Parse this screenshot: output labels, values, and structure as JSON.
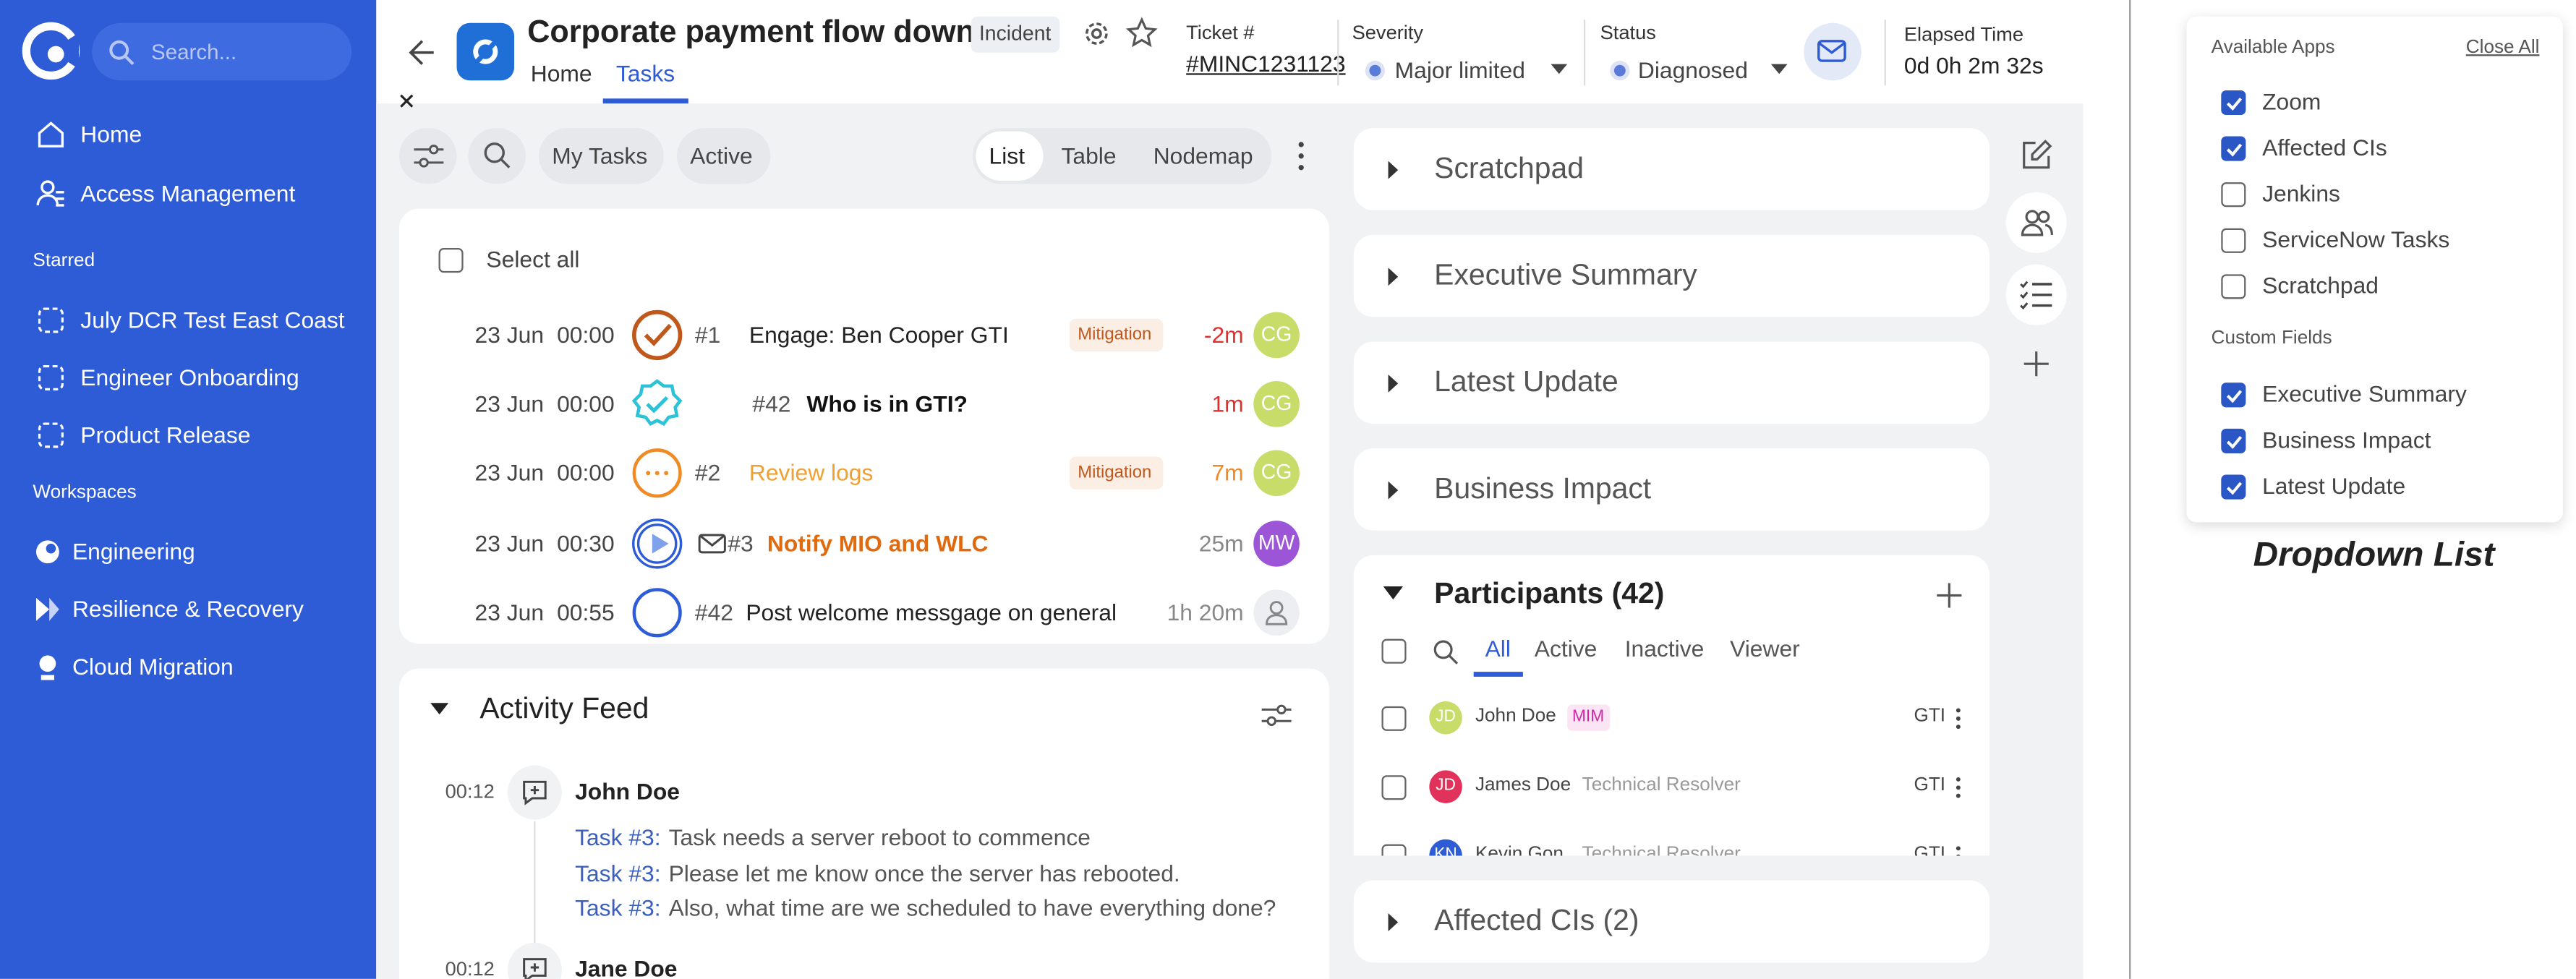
{
  "sidebar": {
    "search_placeholder": "Search...",
    "nav": [
      "Home",
      "Access Management"
    ],
    "starred_heading": "Starred",
    "starred": [
      "July DCR Test East Coast",
      "Engineer Onboarding",
      "Product Release"
    ],
    "workspaces_heading": "Workspaces",
    "workspaces": [
      "Engineering",
      "Resilience & Recovery",
      "Cloud Migration"
    ]
  },
  "header": {
    "title": "Corporate payment flow down",
    "badge": "Incident",
    "tabs": [
      "Home",
      "Tasks"
    ],
    "ticket_label": "Ticket #",
    "ticket": "#MINC1231123",
    "severity_label": "Severity",
    "severity": "Major limited",
    "status_label": "Status",
    "status": "Diagnosed",
    "elapsed_label": "Elapsed Time",
    "elapsed": "0d 0h 2m 32s"
  },
  "tasks": {
    "filters": [
      "My Tasks",
      "Active"
    ],
    "views": [
      "List",
      "Table",
      "Nodemap"
    ],
    "select_all": "Select all",
    "rows": [
      {
        "date": "23 Jun",
        "time": "00:00",
        "id": "#1",
        "name": "Engage: Ben Cooper GTI",
        "tag": "Mitigation",
        "due": "-2m",
        "avatar": "CG"
      },
      {
        "date": "23 Jun",
        "time": "00:00",
        "id": "#42",
        "name": "Who is in GTI?",
        "due": "1m",
        "avatar": "CG"
      },
      {
        "date": "23 Jun",
        "time": "00:00",
        "id": "#2",
        "name": "Review logs",
        "tag": "Mitigation",
        "due": "7m",
        "avatar": "CG"
      },
      {
        "date": "23 Jun",
        "time": "00:30",
        "id": "#3",
        "name": "Notify MIO and WLC",
        "due": "25m",
        "avatar": "MW"
      },
      {
        "date": "23 Jun",
        "time": "00:55",
        "id": "#42",
        "name": "Post welcome messgage on general",
        "due": "1h 20m"
      }
    ]
  },
  "activity": {
    "title": "Activity Feed",
    "entries": [
      {
        "time": "00:12",
        "author": "John Doe",
        "lines": [
          {
            "ref": "Task #3:",
            "text": "Task needs a server reboot to commence"
          },
          {
            "ref": "Task #3:",
            "text": "Please let me know once the server has rebooted."
          },
          {
            "ref": "Task #3:",
            "text": "Also, what time are we scheduled to have everything done?"
          }
        ]
      },
      {
        "time": "00:12",
        "author": "Jane Doe"
      }
    ]
  },
  "panels": {
    "sections": [
      "Scratchpad",
      "Executive Summary",
      "Latest Update",
      "Business Impact"
    ],
    "participants": {
      "title": "Participants (42)",
      "tabs": [
        "All",
        "Active",
        "Inactive",
        "Viewer"
      ],
      "people": [
        {
          "initials": "JD",
          "name": "John Doe",
          "role": "MIM",
          "group": "GTI"
        },
        {
          "initials": "JD",
          "name": "James Doe",
          "role": "Technical Resolver",
          "group": "GTI"
        },
        {
          "initials": "KN",
          "name": "Kevin Gon",
          "role": "Technical Resolver",
          "group": "GTI"
        }
      ]
    },
    "affected": "Affected CIs (2)"
  },
  "dropdown": {
    "apps_heading": "Available Apps",
    "close_all": "Close All",
    "apps": [
      {
        "label": "Zoom",
        "checked": true
      },
      {
        "label": "Affected CIs",
        "checked": true
      },
      {
        "label": "Jenkins",
        "checked": false
      },
      {
        "label": "ServiceNow Tasks",
        "checked": false
      },
      {
        "label": "Scratchpad",
        "checked": false
      }
    ],
    "custom_heading": "Custom Fields",
    "custom": [
      {
        "label": "Executive Summary",
        "checked": true
      },
      {
        "label": "Business Impact",
        "checked": true
      },
      {
        "label": "Latest Update",
        "checked": true
      }
    ],
    "caption": "Dropdown List"
  }
}
